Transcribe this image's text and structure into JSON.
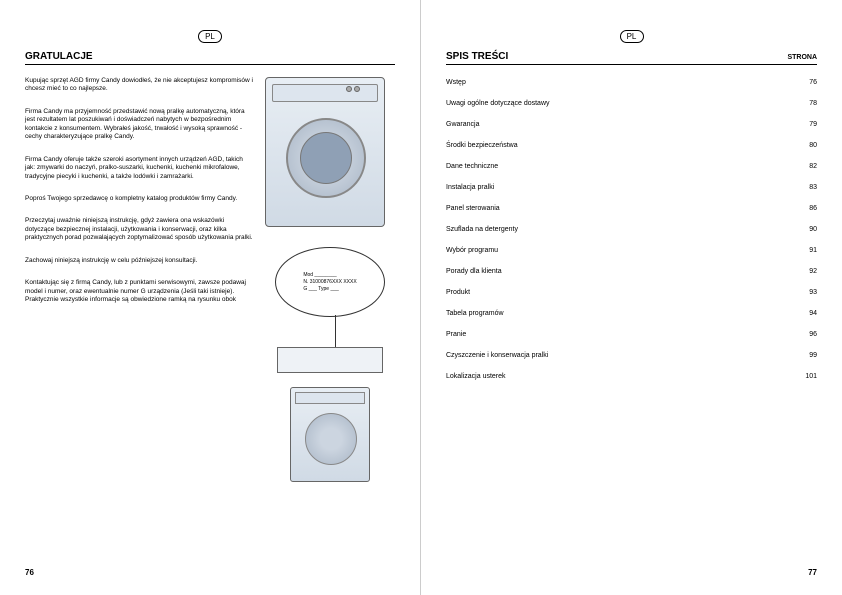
{
  "lang_badge": "PL",
  "left": {
    "title": "GRATULACJE",
    "paragraphs": [
      "Kupując sprzęt AGD firmy Candy dowiodłeś, że nie akceptujesz kompromisów i chcesz mieć to co najlepsze.",
      "Firma Candy ma przyjemność przedstawić nową pralkę automatyczną, która jest rezultatem lat poszukiwań i doświadczeń nabytych w bezpośrednim kontakcie z konsumentem. Wybrałeś jakość, trwałość i wysoką sprawność - cechy charakteryzujące pralkę Candy.",
      "Firma Candy oferuje także szeroki asortyment innych urządzeń AGD, takich jak: zmywarki do naczyń, pralko-suszarki, kuchenki, kuchenki mikrofalowe, tradycyjne piecyki i kuchenki, a także lodówki i zamrażarki.",
      "Poproś Twojego sprzedawcę o kompletny katalog produktów firmy Candy.",
      "Przeczytaj uważnie niniejszą instrukcję, gdyż zawiera ona wskazówki dotyczące bezpiecznej instalacji, użytkowania i konserwacji, oraz kilka praktycznych porad pozwalających zoptymalizować sposób użytkowania pralki.",
      "Zachowaj niniejszą instrukcję w celu późniejszej konsultacji.",
      "Kontaktując się z firmą Candy, lub z punktami serwisowymi, zawsze podawaj model i numer, oraz ewentualnie numer G urządzenia (Jeśli taki istnieje). Praktycznie wszystkie informacje są obwiedzione ramką na rysunku obok"
    ],
    "label_plate": {
      "line1": "Mod ________",
      "line2": "N. 31000876XXX XXXX",
      "line3": "G ___ Type ___"
    },
    "page_number": "76"
  },
  "right": {
    "title": "SPIS TREŚCI",
    "column_label": "STRONA",
    "items": [
      {
        "label": "Wstęp",
        "page": "76"
      },
      {
        "label": "Uwagi ogólne dotyczące dostawy",
        "page": "78"
      },
      {
        "label": "Gwarancja",
        "page": "79"
      },
      {
        "label": "Środki bezpieczeństwa",
        "page": "80"
      },
      {
        "label": "Dane techniczne",
        "page": "82"
      },
      {
        "label": "Instalacja pralki",
        "page": "83"
      },
      {
        "label": "Panel sterowania",
        "page": "86"
      },
      {
        "label": "Szuflada na detergenty",
        "page": "90"
      },
      {
        "label": "Wybór programu",
        "page": "91"
      },
      {
        "label": "Porady dla klienta",
        "page": "92"
      },
      {
        "label": "Produkt",
        "page": "93"
      },
      {
        "label": "Tabela programów",
        "page": "94"
      },
      {
        "label": "Pranie",
        "page": "96"
      },
      {
        "label": "Czyszczenie i konserwacja pralki",
        "page": "99"
      },
      {
        "label": "Lokalizacja usterek",
        "page": "101"
      }
    ],
    "page_number": "77"
  },
  "colors": {
    "washer_bg_top": "#e8eef4",
    "washer_bg_bottom": "#d0dae5",
    "border": "#666666"
  }
}
